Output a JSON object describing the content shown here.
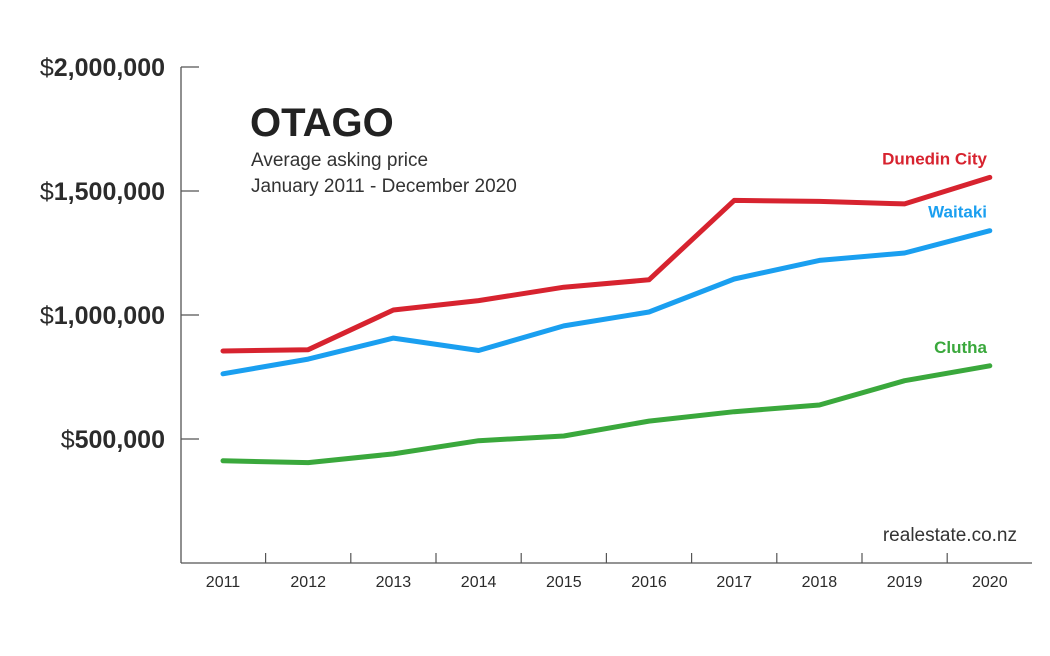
{
  "chart_data": {
    "type": "line",
    "title": "OTAGO",
    "subtitle_lines": [
      "Average asking price",
      "January 2011 - December 2020"
    ],
    "source": "realestate.co.nz",
    "x": [
      "2011",
      "2012",
      "2013",
      "2014",
      "2015",
      "2016",
      "2017",
      "2018",
      "2019",
      "2020"
    ],
    "ylim": [
      0,
      2000000
    ],
    "yticks": [
      {
        "value": 500000,
        "prefix": "$",
        "label": "500,000"
      },
      {
        "value": 1000000,
        "prefix": "$",
        "label": "1,000,000"
      },
      {
        "value": 1500000,
        "prefix": "$",
        "label": "1,500,000"
      },
      {
        "value": 2000000,
        "prefix": "$",
        "label": "2,000,000"
      }
    ],
    "series": [
      {
        "name": "Dunedin City",
        "color": "#d7232f",
        "values": [
          855000,
          860000,
          1020000,
          1058000,
          1112000,
          1142000,
          1462000,
          1458000,
          1448000,
          1555000
        ]
      },
      {
        "name": "Waitaki",
        "color": "#1a9ff0",
        "values": [
          763000,
          822000,
          907000,
          857000,
          956000,
          1012000,
          1145000,
          1220000,
          1250000,
          1340000
        ]
      },
      {
        "name": "Clutha",
        "color": "#3aa83c",
        "values": [
          412000,
          405000,
          440000,
          493000,
          512000,
          572000,
          610000,
          637000,
          735000,
          795000
        ]
      }
    ]
  }
}
